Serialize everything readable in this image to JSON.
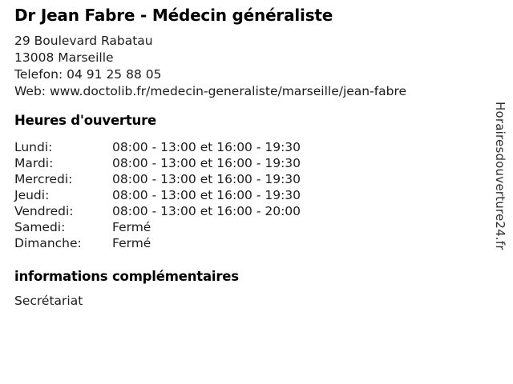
{
  "header": {
    "title": "Dr Jean Fabre - Médecin généraliste"
  },
  "contact": {
    "address_line1": "29 Boulevard Rabatau",
    "address_line2": "13008 Marseille",
    "phone_label": "Telefon:",
    "phone_number": "04 91 25 88 05",
    "web_label": "Web:",
    "web_url": "www.doctolib.fr/medecin-generaliste/marseille/jean-fabre"
  },
  "hours": {
    "heading": "Heures d'ouverture",
    "rows": [
      {
        "day": "Lundi:",
        "time": "08:00 - 13:00 et 16:00 - 19:30"
      },
      {
        "day": "Mardi:",
        "time": "08:00 - 13:00 et 16:00 - 19:30"
      },
      {
        "day": "Mercredi:",
        "time": "08:00 - 13:00 et 16:00 - 19:30"
      },
      {
        "day": "Jeudi:",
        "time": "08:00 - 13:00 et 16:00 - 19:30"
      },
      {
        "day": "Vendredi:",
        "time": "08:00 - 13:00 et 16:00 - 20:00"
      },
      {
        "day": "Samedi:",
        "time": "Fermé"
      },
      {
        "day": "Dimanche:",
        "time": "Fermé"
      }
    ]
  },
  "additional": {
    "heading": "informations complémentaires",
    "text": "Secrétariat"
  },
  "branding": {
    "site": "Horairesdouverture24.fr"
  },
  "colors": {
    "background": "#ffffff",
    "body_text": "#1c1c1c",
    "heading_text": "#000000",
    "watermark_text": "#2e2e2e"
  }
}
